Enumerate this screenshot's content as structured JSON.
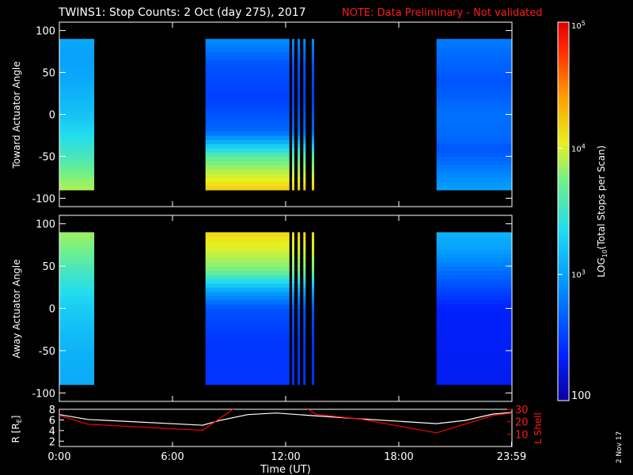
{
  "title": {
    "main": "TWINS1: Stop Counts:  2 Oct (day 275), 2017",
    "note": "NOTE: Data Preliminary - Not validated"
  },
  "date_stamp": "2 Nov 17",
  "chart_data": [
    {
      "type": "heatmap",
      "panel": "toward",
      "ylabel": "Toward Actuator Angle",
      "ylim": [
        -110,
        110
      ],
      "yticks": [
        100,
        50,
        0,
        -50,
        -100
      ],
      "xlim": [
        0,
        24
      ],
      "angle_range": [
        -90,
        90
      ],
      "intervals": [
        {
          "start": 0.0,
          "end": 1.85,
          "profile": [
            [
              -90,
              3.9
            ],
            [
              -70,
              3.75
            ],
            [
              -50,
              3.55
            ],
            [
              -30,
              3.4
            ],
            [
              0,
              3.2
            ],
            [
              40,
              3.05
            ],
            [
              70,
              3.0
            ],
            [
              90,
              3.05
            ]
          ]
        },
        {
          "start": 7.75,
          "end": 12.2,
          "profile": [
            [
              -90,
              4.2
            ],
            [
              -70,
              3.95
            ],
            [
              -50,
              3.65
            ],
            [
              -20,
              2.7
            ],
            [
              20,
              2.5
            ],
            [
              60,
              2.6
            ],
            [
              90,
              2.9
            ]
          ]
        },
        {
          "start": 20.0,
          "end": 24.0,
          "profile": [
            [
              -90,
              3.0
            ],
            [
              -40,
              2.6
            ],
            [
              -30,
              2.7
            ],
            [
              0,
              2.75
            ],
            [
              40,
              2.6
            ],
            [
              90,
              2.8
            ]
          ]
        }
      ],
      "stripes": [
        12.4,
        12.7,
        13.0,
        13.45
      ]
    },
    {
      "type": "heatmap",
      "panel": "away",
      "ylabel": "Away Actuator Angle",
      "ylim": [
        -110,
        110
      ],
      "yticks": [
        100,
        50,
        0,
        -50,
        -100
      ],
      "xlim": [
        0,
        24
      ],
      "angle_range": [
        -90,
        90
      ],
      "intervals": [
        {
          "start": 0.0,
          "end": 1.85,
          "profile": [
            [
              -90,
              3.05
            ],
            [
              -50,
              3.1
            ],
            [
              0,
              3.25
            ],
            [
              40,
              3.5
            ],
            [
              70,
              3.75
            ],
            [
              90,
              3.85
            ]
          ]
        },
        {
          "start": 7.75,
          "end": 12.2,
          "profile": [
            [
              -90,
              2.45
            ],
            [
              -40,
              2.45
            ],
            [
              0,
              2.6
            ],
            [
              20,
              3.0
            ],
            [
              45,
              3.75
            ],
            [
              70,
              4.0
            ],
            [
              90,
              4.15
            ]
          ]
        },
        {
          "start": 20.0,
          "end": 24.0,
          "profile": [
            [
              -90,
              2.3
            ],
            [
              0,
              2.35
            ],
            [
              40,
              2.7
            ],
            [
              70,
              3.0
            ],
            [
              90,
              3.1
            ]
          ]
        }
      ],
      "stripes": [
        12.4,
        12.7,
        13.0,
        13.45
      ]
    },
    {
      "type": "line",
      "panel": "orbit",
      "ylabel": "R [R",
      "ylabel_sub": "E",
      "ylabel_end": "]",
      "y2label": "L Shell",
      "ylim": [
        1,
        8
      ],
      "yticks": [
        2,
        4,
        6,
        8
      ],
      "y2lim": [
        0,
        30
      ],
      "y2ticks": [
        10,
        20,
        30
      ],
      "xlabel": "Time (UT)",
      "xticks": [
        "0:00",
        "6:00",
        "12:00",
        "18:00",
        "23:59"
      ],
      "xtick_hours": [
        0,
        6,
        12,
        18,
        23.98
      ],
      "series": [
        {
          "color": "#ffffff",
          "axis": "left",
          "x": [
            0,
            1.5,
            7.6,
            8.5,
            10.0,
            11.5,
            13.5,
            16.0,
            20.0,
            21.5,
            23.0,
            24.0
          ],
          "y": [
            7.0,
            6.1,
            5.0,
            5.9,
            7.0,
            7.3,
            6.8,
            6.2,
            5.3,
            5.9,
            7.1,
            7.4
          ]
        },
        {
          "color": "#ff0000",
          "axis": "right",
          "x": [
            0,
            1.5,
            7.6,
            9.2,
            9.45,
            13.1,
            13.6,
            16.0,
            20.0,
            21.5,
            23.0,
            24.0
          ],
          "y": [
            25.0,
            18.0,
            13.0,
            30.0,
            31.0,
            31.0,
            26.0,
            22.0,
            11.0,
            18.0,
            25.0,
            27.0
          ]
        }
      ]
    }
  ],
  "colorbar": {
    "label_pre": "LOG",
    "label_sub": "10",
    "label_post": "(Total Stops per Scan)",
    "tick_labels": [
      "10",
      "10",
      "10",
      "100"
    ],
    "tick_exps": [
      "5",
      "4",
      "3",
      ""
    ]
  }
}
